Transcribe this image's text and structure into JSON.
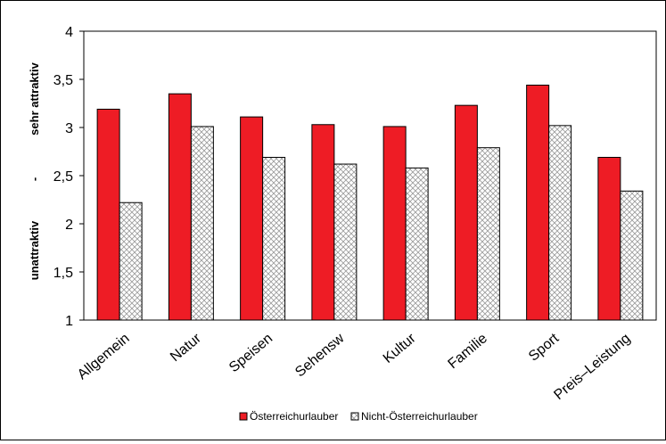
{
  "chart_data": {
    "type": "bar",
    "categories": [
      "Allgemein",
      "Natur",
      "Speisen",
      "Sehensw",
      "Kultur",
      "Familie",
      "Sport",
      "Preis–Leistung"
    ],
    "series": [
      {
        "name": "Österreichurlauber",
        "values": [
          3.19,
          3.35,
          3.11,
          3.03,
          3.01,
          3.23,
          3.44,
          2.69
        ],
        "color": "#ee1c25",
        "pattern": "solid"
      },
      {
        "name": "Nicht-Österreichurlauber",
        "values": [
          2.22,
          3.01,
          2.69,
          2.62,
          2.58,
          2.79,
          3.02,
          2.34
        ],
        "color": "#ffffff",
        "pattern": "crosshatch"
      }
    ],
    "ylim": [
      1,
      4
    ],
    "yticks": [
      "1",
      "1,5",
      "2",
      "2,5",
      "3",
      "3,5",
      "4"
    ],
    "ylabel_parts": [
      "unattraktiv",
      "-",
      "sehr attraktiv"
    ],
    "legend_position": "bottom",
    "grid": false
  }
}
